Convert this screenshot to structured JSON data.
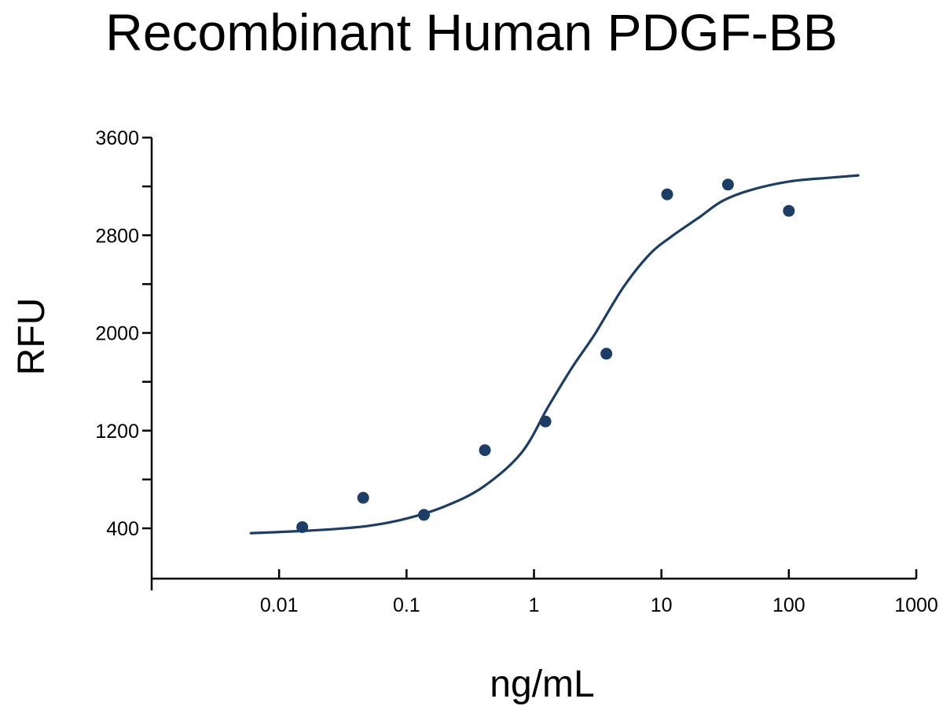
{
  "chart_data": {
    "type": "scatter",
    "title": "Recombinant Human PDGF-BB",
    "xlabel": "ng/mL",
    "ylabel": "RFU",
    "x_scale": "log",
    "xlim": [
      0.001,
      1000
    ],
    "ylim": [
      0,
      3600
    ],
    "x_ticks": [
      {
        "value": 0.01,
        "label": "0.01"
      },
      {
        "value": 0.1,
        "label": "0.1"
      },
      {
        "value": 1,
        "label": "1"
      },
      {
        "value": 10,
        "label": "10"
      },
      {
        "value": 100,
        "label": "100"
      },
      {
        "value": 1000,
        "label": "1000"
      }
    ],
    "y_ticks": [
      {
        "value": 400,
        "label": "400"
      },
      {
        "value": 800,
        "label": ""
      },
      {
        "value": 1200,
        "label": "1200"
      },
      {
        "value": 1600,
        "label": ""
      },
      {
        "value": 2000,
        "label": "2000"
      },
      {
        "value": 2400,
        "label": ""
      },
      {
        "value": 2800,
        "label": "2800"
      },
      {
        "value": 3200,
        "label": ""
      },
      {
        "value": 3600,
        "label": "3600"
      }
    ],
    "series": [
      {
        "points": [
          {
            "x": 0.0152,
            "y": 410
          },
          {
            "x": 0.0457,
            "y": 650
          },
          {
            "x": 0.137,
            "y": 510
          },
          {
            "x": 0.412,
            "y": 1040
          },
          {
            "x": 1.23,
            "y": 1275
          },
          {
            "x": 3.7,
            "y": 1830
          },
          {
            "x": 11.1,
            "y": 3135
          },
          {
            "x": 33.3,
            "y": 3215
          },
          {
            "x": 100,
            "y": 3000
          }
        ],
        "curve": [
          {
            "x": 0.006,
            "y": 360
          },
          {
            "x": 0.02,
            "y": 385
          },
          {
            "x": 0.05,
            "y": 420
          },
          {
            "x": 0.1,
            "y": 480
          },
          {
            "x": 0.2,
            "y": 580
          },
          {
            "x": 0.4,
            "y": 740
          },
          {
            "x": 0.8,
            "y": 1020
          },
          {
            "x": 1.3,
            "y": 1400
          },
          {
            "x": 2,
            "y": 1720
          },
          {
            "x": 3,
            "y": 1990
          },
          {
            "x": 5,
            "y": 2370
          },
          {
            "x": 8,
            "y": 2640
          },
          {
            "x": 12,
            "y": 2790
          },
          {
            "x": 20,
            "y": 2950
          },
          {
            "x": 30,
            "y": 3080
          },
          {
            "x": 50,
            "y": 3170
          },
          {
            "x": 100,
            "y": 3240
          },
          {
            "x": 200,
            "y": 3270
          },
          {
            "x": 350,
            "y": 3290
          }
        ]
      }
    ],
    "color": "#1b3d66",
    "grid": false,
    "legend": "none"
  }
}
